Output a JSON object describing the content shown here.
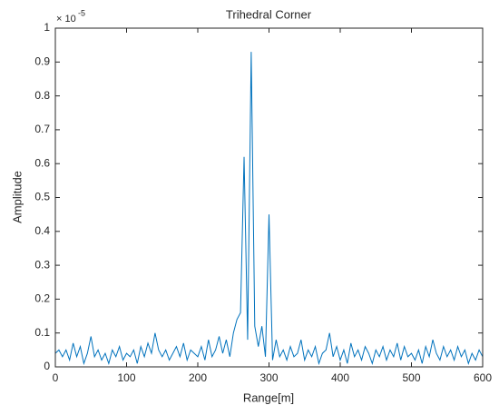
{
  "chart_data": {
    "type": "line",
    "title": "Trihedral Corner",
    "x_label": "Range[m]",
    "y_label": "Amplitude",
    "y_multiplier": {
      "base": "× 10",
      "exponent": "-5"
    },
    "x": [
      0,
      5,
      10,
      15,
      20,
      25,
      30,
      35,
      40,
      45,
      50,
      55,
      60,
      65,
      70,
      75,
      80,
      85,
      90,
      95,
      100,
      105,
      110,
      115,
      120,
      125,
      130,
      135,
      140,
      145,
      150,
      155,
      160,
      165,
      170,
      175,
      180,
      185,
      190,
      195,
      200,
      205,
      210,
      215,
      220,
      225,
      230,
      235,
      240,
      245,
      250,
      255,
      260,
      265,
      270,
      275,
      280,
      285,
      290,
      295,
      300,
      305,
      310,
      315,
      320,
      325,
      330,
      335,
      340,
      345,
      350,
      355,
      360,
      365,
      370,
      375,
      380,
      385,
      390,
      395,
      400,
      405,
      410,
      415,
      420,
      425,
      430,
      435,
      440,
      445,
      450,
      455,
      460,
      465,
      470,
      475,
      480,
      485,
      490,
      495,
      500,
      505,
      510,
      515,
      520,
      525,
      530,
      535,
      540,
      545,
      550,
      555,
      560,
      565,
      570,
      575,
      580,
      585,
      590,
      595,
      600
    ],
    "series": [
      {
        "name": "Amplitude",
        "color": "#0072bd",
        "values": [
          0.04,
          0.05,
          0.03,
          0.05,
          0.02,
          0.07,
          0.03,
          0.06,
          0.01,
          0.04,
          0.09,
          0.03,
          0.05,
          0.02,
          0.04,
          0.01,
          0.05,
          0.03,
          0.06,
          0.02,
          0.04,
          0.03,
          0.05,
          0.01,
          0.06,
          0.03,
          0.07,
          0.04,
          0.1,
          0.05,
          0.03,
          0.05,
          0.02,
          0.04,
          0.06,
          0.03,
          0.07,
          0.02,
          0.05,
          0.04,
          0.03,
          0.06,
          0.02,
          0.08,
          0.03,
          0.05,
          0.09,
          0.04,
          0.08,
          0.03,
          0.1,
          0.14,
          0.16,
          0.62,
          0.08,
          0.93,
          0.12,
          0.06,
          0.12,
          0.03,
          0.45,
          0.02,
          0.08,
          0.03,
          0.05,
          0.02,
          0.06,
          0.03,
          0.04,
          0.08,
          0.02,
          0.05,
          0.03,
          0.06,
          0.01,
          0.04,
          0.05,
          0.1,
          0.03,
          0.06,
          0.02,
          0.05,
          0.01,
          0.07,
          0.03,
          0.05,
          0.02,
          0.06,
          0.04,
          0.01,
          0.05,
          0.03,
          0.06,
          0.02,
          0.05,
          0.03,
          0.07,
          0.02,
          0.06,
          0.03,
          0.04,
          0.02,
          0.05,
          0.01,
          0.06,
          0.03,
          0.08,
          0.04,
          0.02,
          0.06,
          0.03,
          0.05,
          0.02,
          0.06,
          0.03,
          0.05,
          0.01,
          0.04,
          0.02,
          0.05,
          0.03
        ]
      }
    ],
    "xlim": [
      0,
      600
    ],
    "xticks": [
      0,
      100,
      200,
      300,
      400,
      500,
      600
    ],
    "ylim": [
      0,
      1
    ],
    "yticks": [
      0,
      0.1,
      0.2,
      0.3,
      0.4,
      0.5,
      0.6,
      0.7,
      0.8,
      0.9,
      1
    ]
  }
}
